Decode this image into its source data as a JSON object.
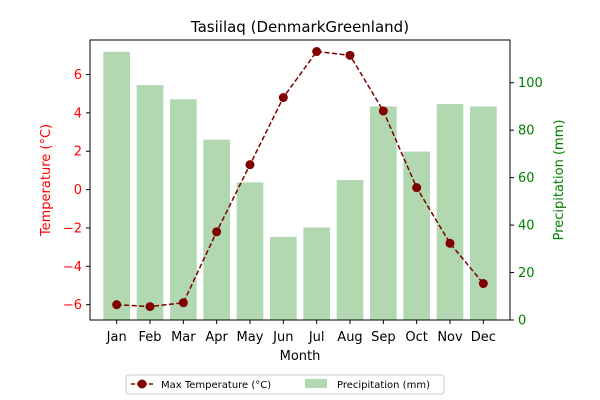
{
  "chart_data": {
    "type": "bar+line",
    "title": "Tasiilaq (DenmarkGreenland)",
    "xlabel": "Month",
    "categories": [
      "Jan",
      "Feb",
      "Mar",
      "Apr",
      "May",
      "Jun",
      "Jul",
      "Aug",
      "Sep",
      "Oct",
      "Nov",
      "Dec"
    ],
    "left_axis": {
      "label": "Temperature (°C)",
      "color": "#ff0000",
      "ylim": [
        -6.8,
        7.8
      ],
      "ticks": [
        -6,
        -4,
        -2,
        0,
        2,
        4,
        6
      ],
      "tick_labels": [
        "−6",
        "−4",
        "−2",
        "0",
        "2",
        "4",
        "6"
      ]
    },
    "right_axis": {
      "label": "Precipitation (mm)",
      "color": "#008000",
      "ylim": [
        0,
        118
      ],
      "ticks": [
        0,
        20,
        40,
        60,
        80,
        100
      ],
      "tick_labels": [
        "0",
        "20",
        "40",
        "60",
        "80",
        "100"
      ]
    },
    "series": [
      {
        "name": "Max Temperature (°C)",
        "type": "line",
        "axis": "left",
        "color": "#800000",
        "values": [
          -6.0,
          -6.1,
          -5.9,
          -2.2,
          1.3,
          4.8,
          7.2,
          7.0,
          4.1,
          0.1,
          -2.8,
          -4.9
        ]
      },
      {
        "name": "Precipitation (mm)",
        "type": "bar",
        "axis": "right",
        "color": "#b1d8b1",
        "values": [
          113,
          99,
          93,
          76,
          58,
          35,
          39,
          59,
          90,
          71,
          91,
          90
        ]
      }
    ],
    "legend_position": "bottom-center",
    "grid": false
  }
}
